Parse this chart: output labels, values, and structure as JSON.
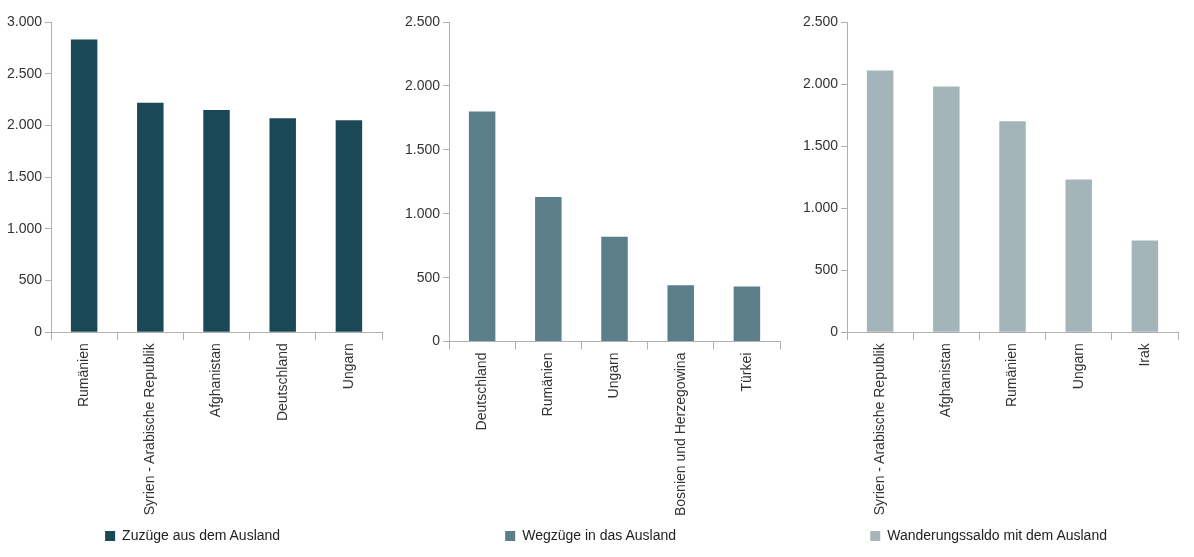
{
  "chart_data": [
    {
      "type": "bar",
      "categories": [
        "Rumänien",
        "Syrien - Arabische Republik",
        "Afghanistan",
        "Deutschland",
        "Ungarn"
      ],
      "series": [
        {
          "name": "Zuzüge aus dem Ausland",
          "color": "#1b4856",
          "values": [
            2830,
            2220,
            2150,
            2070,
            2050
          ]
        }
      ],
      "ylim": [
        0,
        3000
      ],
      "yticks": [
        {
          "value": 0,
          "label": "0"
        },
        {
          "value": 500,
          "label": "500"
        },
        {
          "value": 1000,
          "label": "1.000"
        },
        {
          "value": 1500,
          "label": "1.500"
        },
        {
          "value": 2000,
          "label": "2.000"
        },
        {
          "value": 2500,
          "label": "2.500"
        },
        {
          "value": 3000,
          "label": "3.000"
        }
      ],
      "grid": false,
      "legend": "bottom"
    },
    {
      "type": "bar",
      "categories": [
        "Deutschland",
        "Rumänien",
        "Ungarn",
        "Bosnien und Herzegowina",
        "Türkei"
      ],
      "series": [
        {
          "name": "Wegzüge in das Ausland",
          "color": "#5b7e88",
          "values": [
            1800,
            1130,
            820,
            440,
            430
          ]
        }
      ],
      "ylim": [
        0,
        2500
      ],
      "yticks": [
        {
          "value": 0,
          "label": "0"
        },
        {
          "value": 500,
          "label": "500"
        },
        {
          "value": 1000,
          "label": "1.000"
        },
        {
          "value": 1500,
          "label": "1.500"
        },
        {
          "value": 2000,
          "label": "2.000"
        },
        {
          "value": 2500,
          "label": "2.500"
        }
      ],
      "grid": false,
      "legend": "bottom"
    },
    {
      "type": "bar",
      "categories": [
        "Syrien - Arabische Republik",
        "Afghanistan",
        "Rumänien",
        "Ungarn",
        "Irak"
      ],
      "series": [
        {
          "name": "Wanderungssaldo mit dem Ausland",
          "color": "#a4b5b9",
          "values": [
            2110,
            1980,
            1700,
            1230,
            740
          ]
        }
      ],
      "ylim": [
        0,
        2500
      ],
      "yticks": [
        {
          "value": 0,
          "label": "0"
        },
        {
          "value": 500,
          "label": "500"
        },
        {
          "value": 1000,
          "label": "1.000"
        },
        {
          "value": 1500,
          "label": "1.500"
        },
        {
          "value": 2000,
          "label": "2.000"
        },
        {
          "value": 2500,
          "label": "2.500"
        }
      ],
      "grid": false,
      "legend": "bottom"
    }
  ]
}
